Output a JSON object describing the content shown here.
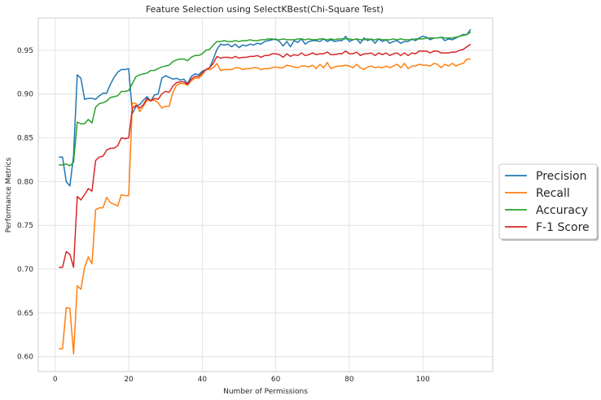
{
  "chart_data": {
    "type": "line",
    "title": "Feature Selection using SelectKBest(Chi-Square Test)",
    "xlabel": "Number of Permissions",
    "ylabel": "Performance Metrics",
    "xlim": [
      -4.6,
      119
    ],
    "ylim": [
      0.583,
      0.987
    ],
    "xticks": [
      0,
      20,
      40,
      60,
      80,
      100
    ],
    "yticks": [
      0.6,
      0.65,
      0.7,
      0.75,
      0.8,
      0.85,
      0.9,
      0.95
    ],
    "ytick_labels": [
      "0.60",
      "0.65",
      "0.70",
      "0.75",
      "0.80",
      "0.85",
      "0.90",
      "0.95"
    ],
    "grid": true,
    "legend_position": "center-right outside",
    "x": [
      1,
      2,
      3,
      4,
      5,
      6,
      7,
      8,
      9,
      10,
      11,
      12,
      13,
      14,
      15,
      16,
      17,
      18,
      19,
      20,
      21,
      22,
      23,
      24,
      25,
      26,
      27,
      28,
      29,
      30,
      31,
      32,
      33,
      34,
      35,
      36,
      37,
      38,
      39,
      40,
      41,
      42,
      43,
      44,
      45,
      46,
      47,
      48,
      49,
      50,
      51,
      52,
      53,
      54,
      55,
      56,
      57,
      58,
      59,
      60,
      61,
      62,
      63,
      64,
      65,
      66,
      67,
      68,
      69,
      70,
      71,
      72,
      73,
      74,
      75,
      76,
      77,
      78,
      79,
      80,
      81,
      82,
      83,
      84,
      85,
      86,
      87,
      88,
      89,
      90,
      91,
      92,
      93,
      94,
      95,
      96,
      97,
      98,
      99,
      100,
      101,
      102,
      103,
      104,
      105,
      106,
      107,
      108,
      109,
      110,
      111,
      112,
      113
    ],
    "series": [
      {
        "name": "Precision",
        "color": "#1f77b4",
        "values": [
          0.828,
          0.828,
          0.8,
          0.795,
          0.83,
          0.922,
          0.918,
          0.894,
          0.895,
          0.895,
          0.894,
          0.898,
          0.901,
          0.901,
          0.911,
          0.919,
          0.925,
          0.928,
          0.928,
          0.929,
          0.878,
          0.886,
          0.888,
          0.893,
          0.897,
          0.892,
          0.899,
          0.9,
          0.918,
          0.921,
          0.919,
          0.917,
          0.918,
          0.916,
          0.917,
          0.912,
          0.92,
          0.923,
          0.922,
          0.926,
          0.928,
          0.93,
          0.94,
          0.951,
          0.957,
          0.956,
          0.957,
          0.954,
          0.957,
          0.953,
          0.956,
          0.955,
          0.957,
          0.956,
          0.958,
          0.957,
          0.96,
          0.961,
          0.962,
          0.963,
          0.96,
          0.955,
          0.96,
          0.954,
          0.961,
          0.959,
          0.963,
          0.957,
          0.96,
          0.961,
          0.961,
          0.96,
          0.963,
          0.96,
          0.962,
          0.96,
          0.961,
          0.961,
          0.966,
          0.96,
          0.962,
          0.963,
          0.958,
          0.964,
          0.961,
          0.963,
          0.958,
          0.963,
          0.96,
          0.962,
          0.958,
          0.96,
          0.961,
          0.958,
          0.96,
          0.96,
          0.963,
          0.961,
          0.964,
          0.966,
          0.965,
          0.962,
          0.964,
          0.964,
          0.965,
          0.961,
          0.963,
          0.962,
          0.964,
          0.966,
          0.968,
          0.968,
          0.974
        ]
      },
      {
        "name": "Recall",
        "color": "#ff7f0e",
        "values": [
          0.609,
          0.609,
          0.656,
          0.655,
          0.603,
          0.681,
          0.677,
          0.702,
          0.714,
          0.706,
          0.768,
          0.77,
          0.77,
          0.782,
          0.776,
          0.774,
          0.772,
          0.785,
          0.784,
          0.784,
          0.89,
          0.889,
          0.88,
          0.886,
          0.893,
          0.893,
          0.893,
          0.89,
          0.884,
          0.886,
          0.886,
          0.902,
          0.91,
          0.912,
          0.912,
          0.91,
          0.915,
          0.918,
          0.918,
          0.922,
          0.928,
          0.928,
          0.93,
          0.935,
          0.927,
          0.928,
          0.928,
          0.928,
          0.93,
          0.93,
          0.928,
          0.929,
          0.929,
          0.93,
          0.93,
          0.928,
          0.929,
          0.929,
          0.93,
          0.931,
          0.93,
          0.93,
          0.933,
          0.932,
          0.931,
          0.93,
          0.932,
          0.932,
          0.931,
          0.933,
          0.929,
          0.934,
          0.93,
          0.936,
          0.929,
          0.931,
          0.932,
          0.932,
          0.933,
          0.932,
          0.93,
          0.934,
          0.93,
          0.928,
          0.931,
          0.932,
          0.93,
          0.931,
          0.93,
          0.932,
          0.93,
          0.932,
          0.934,
          0.93,
          0.935,
          0.929,
          0.932,
          0.932,
          0.934,
          0.933,
          0.933,
          0.932,
          0.935,
          0.934,
          0.93,
          0.934,
          0.932,
          0.935,
          0.932,
          0.934,
          0.935,
          0.94,
          0.94
        ]
      },
      {
        "name": "Accuracy",
        "color": "#2ca02c",
        "values": [
          0.819,
          0.819,
          0.82,
          0.818,
          0.822,
          0.868,
          0.866,
          0.866,
          0.871,
          0.867,
          0.885,
          0.889,
          0.89,
          0.892,
          0.896,
          0.897,
          0.898,
          0.903,
          0.903,
          0.904,
          0.912,
          0.92,
          0.922,
          0.923,
          0.924,
          0.927,
          0.927,
          0.929,
          0.931,
          0.932,
          0.933,
          0.937,
          0.939,
          0.94,
          0.94,
          0.938,
          0.942,
          0.944,
          0.944,
          0.946,
          0.95,
          0.951,
          0.956,
          0.96,
          0.96,
          0.961,
          0.96,
          0.96,
          0.961,
          0.96,
          0.961,
          0.961,
          0.962,
          0.961,
          0.961,
          0.962,
          0.962,
          0.963,
          0.963,
          0.962,
          0.962,
          0.963,
          0.962,
          0.962,
          0.962,
          0.963,
          0.963,
          0.962,
          0.963,
          0.962,
          0.962,
          0.963,
          0.963,
          0.962,
          0.963,
          0.962,
          0.963,
          0.963,
          0.963,
          0.963,
          0.962,
          0.963,
          0.962,
          0.962,
          0.963,
          0.962,
          0.962,
          0.963,
          0.962,
          0.962,
          0.962,
          0.963,
          0.962,
          0.963,
          0.962,
          0.962,
          0.962,
          0.963,
          0.963,
          0.963,
          0.964,
          0.964,
          0.964,
          0.964,
          0.965,
          0.964,
          0.964,
          0.964,
          0.965,
          0.966,
          0.967,
          0.968,
          0.971
        ]
      },
      {
        "name": "F-1 Score",
        "color": "#d62728",
        "values": [
          0.702,
          0.702,
          0.72,
          0.717,
          0.702,
          0.783,
          0.779,
          0.785,
          0.792,
          0.789,
          0.824,
          0.828,
          0.829,
          0.836,
          0.838,
          0.838,
          0.841,
          0.85,
          0.849,
          0.85,
          0.884,
          0.887,
          0.884,
          0.888,
          0.895,
          0.892,
          0.895,
          0.894,
          0.9,
          0.903,
          0.902,
          0.909,
          0.913,
          0.914,
          0.914,
          0.911,
          0.917,
          0.92,
          0.92,
          0.924,
          0.928,
          0.93,
          0.935,
          0.943,
          0.941,
          0.942,
          0.942,
          0.941,
          0.943,
          0.941,
          0.942,
          0.942,
          0.943,
          0.943,
          0.944,
          0.942,
          0.944,
          0.944,
          0.946,
          0.946,
          0.945,
          0.942,
          0.946,
          0.943,
          0.945,
          0.944,
          0.947,
          0.944,
          0.945,
          0.947,
          0.945,
          0.946,
          0.946,
          0.948,
          0.945,
          0.945,
          0.946,
          0.946,
          0.949,
          0.946,
          0.946,
          0.948,
          0.944,
          0.946,
          0.946,
          0.947,
          0.944,
          0.947,
          0.945,
          0.947,
          0.944,
          0.946,
          0.947,
          0.944,
          0.947,
          0.944,
          0.947,
          0.946,
          0.949,
          0.949,
          0.949,
          0.947,
          0.949,
          0.949,
          0.947,
          0.947,
          0.947,
          0.948,
          0.948,
          0.95,
          0.951,
          0.954,
          0.957
        ]
      }
    ]
  }
}
